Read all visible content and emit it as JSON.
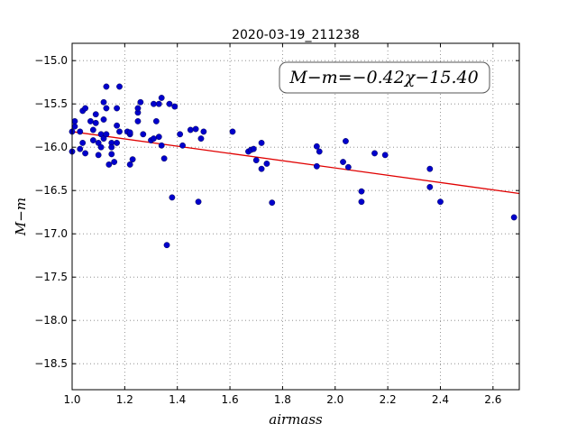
{
  "chart_data": {
    "type": "scatter",
    "title": "2020-03-19_211238",
    "xlabel": "airmass",
    "ylabel": "M−m",
    "xlim": [
      1.0,
      2.7
    ],
    "ylim": [
      -18.8,
      -14.8
    ],
    "y_inverted": true,
    "xticks": [
      "1.0",
      "1.2",
      "1.4",
      "1.6",
      "1.8",
      "2.0",
      "2.2",
      "2.4",
      "2.6"
    ],
    "xtick_values": [
      1.0,
      1.2,
      1.4,
      1.6,
      1.8,
      2.0,
      2.2,
      2.4,
      2.6
    ],
    "yticks": [
      "−15.0",
      "−15.5",
      "−16.0",
      "−16.5",
      "−17.0",
      "−17.5",
      "−18.0",
      "−18.5"
    ],
    "ytick_values": [
      -15.0,
      -15.5,
      -16.0,
      -16.5,
      -17.0,
      -17.5,
      -18.0,
      -18.5
    ],
    "grid": true,
    "point_color": "#0000cc",
    "fit_color": "#e00000",
    "fit": {
      "slope": -0.42,
      "intercept": -15.4
    },
    "equation": "M−m=−0.42χ−15.40",
    "equation_placement": "top-right",
    "points": [
      [
        1.0,
        -16.05
      ],
      [
        1.0,
        -15.82
      ],
      [
        1.01,
        -15.76
      ],
      [
        1.01,
        -15.7
      ],
      [
        1.03,
        -15.82
      ],
      [
        1.03,
        -16.02
      ],
      [
        1.04,
        -15.95
      ],
      [
        1.04,
        -15.58
      ],
      [
        1.05,
        -15.55
      ],
      [
        1.05,
        -16.07
      ],
      [
        1.07,
        -15.7
      ],
      [
        1.08,
        -15.92
      ],
      [
        1.08,
        -15.8
      ],
      [
        1.09,
        -15.62
      ],
      [
        1.09,
        -15.72
      ],
      [
        1.1,
        -15.95
      ],
      [
        1.1,
        -16.09
      ],
      [
        1.11,
        -15.85
      ],
      [
        1.11,
        -16.0
      ],
      [
        1.12,
        -15.68
      ],
      [
        1.12,
        -15.9
      ],
      [
        1.12,
        -15.48
      ],
      [
        1.13,
        -15.3
      ],
      [
        1.13,
        -15.55
      ],
      [
        1.13,
        -15.85
      ],
      [
        1.14,
        -16.2
      ],
      [
        1.15,
        -15.95
      ],
      [
        1.15,
        -16.0
      ],
      [
        1.15,
        -16.08
      ],
      [
        1.16,
        -16.17
      ],
      [
        1.17,
        -15.55
      ],
      [
        1.17,
        -15.95
      ],
      [
        1.17,
        -15.75
      ],
      [
        1.18,
        -15.82
      ],
      [
        1.18,
        -15.3
      ],
      [
        1.21,
        -15.82
      ],
      [
        1.22,
        -15.85
      ],
      [
        1.22,
        -16.2
      ],
      [
        1.22,
        -15.83
      ],
      [
        1.23,
        -16.14
      ],
      [
        1.25,
        -15.6
      ],
      [
        1.25,
        -15.55
      ],
      [
        1.25,
        -15.7
      ],
      [
        1.26,
        -15.48
      ],
      [
        1.27,
        -15.85
      ],
      [
        1.3,
        -15.92
      ],
      [
        1.31,
        -15.5
      ],
      [
        1.31,
        -15.9
      ],
      [
        1.32,
        -15.7
      ],
      [
        1.33,
        -15.5
      ],
      [
        1.33,
        -15.88
      ],
      [
        1.34,
        -15.43
      ],
      [
        1.34,
        -15.98
      ],
      [
        1.35,
        -16.13
      ],
      [
        1.36,
        -17.13
      ],
      [
        1.37,
        -15.5
      ],
      [
        1.38,
        -16.58
      ],
      [
        1.39,
        -15.53
      ],
      [
        1.41,
        -15.85
      ],
      [
        1.42,
        -15.98
      ],
      [
        1.45,
        -15.8
      ],
      [
        1.47,
        -15.79
      ],
      [
        1.48,
        -16.63
      ],
      [
        1.49,
        -15.9
      ],
      [
        1.5,
        -15.82
      ],
      [
        1.61,
        -15.82
      ],
      [
        1.67,
        -16.05
      ],
      [
        1.68,
        -16.03
      ],
      [
        1.69,
        -16.02
      ],
      [
        1.7,
        -16.15
      ],
      [
        1.72,
        -15.95
      ],
      [
        1.72,
        -16.25
      ],
      [
        1.74,
        -16.19
      ],
      [
        1.76,
        -16.64
      ],
      [
        1.93,
        -16.22
      ],
      [
        1.93,
        -15.99
      ],
      [
        1.94,
        -16.05
      ],
      [
        2.03,
        -16.17
      ],
      [
        2.04,
        -15.93
      ],
      [
        2.05,
        -16.23
      ],
      [
        2.1,
        -16.51
      ],
      [
        2.1,
        -16.63
      ],
      [
        2.15,
        -16.07
      ],
      [
        2.19,
        -16.09
      ],
      [
        2.36,
        -16.25
      ],
      [
        2.36,
        -16.46
      ],
      [
        2.4,
        -16.63
      ],
      [
        2.68,
        -16.81
      ]
    ]
  }
}
